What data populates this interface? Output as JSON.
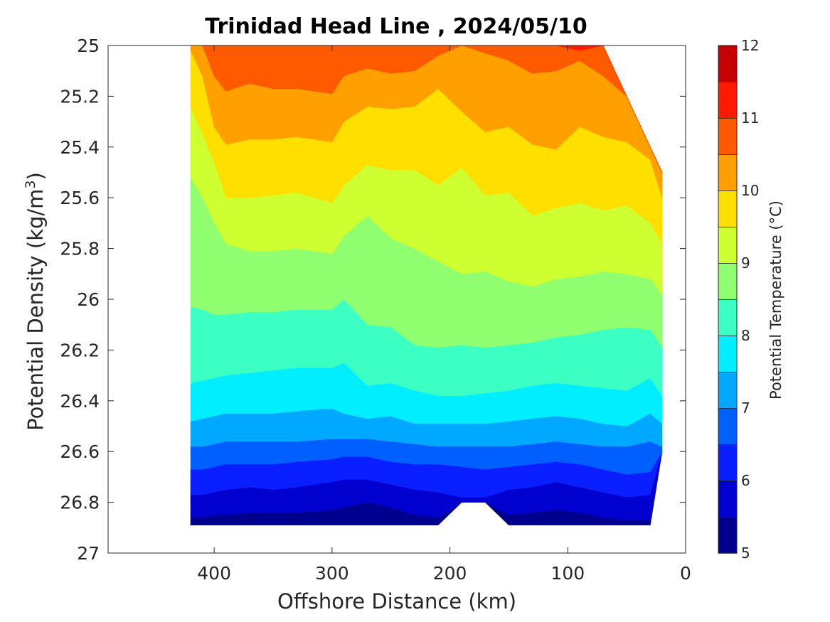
{
  "chart_data": {
    "type": "contour",
    "title": "Trinidad Head Line , 2024/05/10",
    "xlabel": "Offshore Distance (km)",
    "ylabel_main": "Potential Density (kg/m",
    "ylabel_sup": "3",
    "ylabel_close": ")",
    "xlim": [
      490,
      0
    ],
    "ylim": [
      25,
      27
    ],
    "x_reversed": true,
    "y_reversed": true,
    "xticks": [
      400,
      300,
      200,
      100,
      0
    ],
    "yticks": [
      25,
      25.2,
      25.4,
      25.6,
      25.8,
      26,
      26.2,
      26.4,
      26.6,
      26.8,
      27
    ],
    "ytick_labels": [
      "25",
      "25.2",
      "25.4",
      "25.6",
      "25.8",
      "26",
      "26.2",
      "26.4",
      "26.6",
      "26.8",
      "27"
    ],
    "colorbar": {
      "label": "Potential Temperature (°C)",
      "range": [
        5,
        12
      ],
      "ticks": [
        5,
        6,
        7,
        8,
        9,
        10,
        11,
        12
      ],
      "levels": [
        5,
        5.5,
        6,
        6.5,
        7,
        7.5,
        8,
        8.5,
        9,
        9.5,
        10,
        10.5,
        11,
        11.5,
        12
      ],
      "colors": [
        "#00008f",
        "#0000cf",
        "#0a1fff",
        "#0060ff",
        "#00a8ff",
        "#00eeff",
        "#3cffc3",
        "#8fff70",
        "#cdff31",
        "#ffdf00",
        "#ff9f00",
        "#ff5a00",
        "#ff1a00",
        "#c40000"
      ]
    },
    "x": [
      420,
      410,
      400,
      390,
      370,
      350,
      330,
      300,
      290,
      270,
      250,
      230,
      210,
      190,
      170,
      150,
      130,
      110,
      90,
      70,
      50,
      30,
      20
    ],
    "bottom_density": [
      26.89,
      26.89,
      26.89,
      26.89,
      26.89,
      26.89,
      26.89,
      26.89,
      26.89,
      26.89,
      26.89,
      26.89,
      26.89,
      26.8,
      26.8,
      26.89,
      26.89,
      26.89,
      26.89,
      26.89,
      26.89,
      26.89,
      26.6
    ],
    "top_density": [
      25,
      25,
      25,
      25,
      25,
      25,
      25,
      25,
      25,
      25,
      25,
      25,
      25,
      25,
      25,
      25,
      25,
      25,
      25,
      25,
      25.2,
      25.4,
      25.5
    ],
    "isolines": [
      {
        "level": 5.5,
        "density": [
          26.86,
          26.86,
          26.85,
          26.85,
          26.84,
          26.84,
          26.84,
          26.83,
          26.82,
          26.8,
          26.82,
          26.85,
          26.86,
          26.8,
          26.8,
          26.85,
          26.84,
          26.83,
          26.84,
          26.86,
          26.87,
          26.87,
          26.6
        ]
      },
      {
        "level": 6.0,
        "density": [
          26.77,
          26.77,
          26.76,
          26.75,
          26.74,
          26.75,
          26.74,
          26.72,
          26.71,
          26.71,
          26.73,
          26.75,
          26.76,
          26.78,
          26.78,
          26.75,
          26.74,
          26.72,
          26.74,
          26.76,
          26.78,
          26.77,
          26.6
        ]
      },
      {
        "level": 6.5,
        "density": [
          26.67,
          26.67,
          26.66,
          26.65,
          26.65,
          26.65,
          26.64,
          26.63,
          26.62,
          26.62,
          26.64,
          26.65,
          26.65,
          26.66,
          26.67,
          26.66,
          26.65,
          26.64,
          26.65,
          26.67,
          26.69,
          26.68,
          26.6
        ]
      },
      {
        "level": 7.0,
        "density": [
          26.58,
          26.58,
          26.57,
          26.56,
          26.56,
          26.56,
          26.56,
          26.55,
          26.55,
          26.55,
          26.56,
          26.57,
          26.58,
          26.58,
          26.58,
          26.58,
          26.57,
          26.56,
          26.57,
          26.58,
          26.58,
          26.56,
          26.58
        ]
      },
      {
        "level": 7.5,
        "density": [
          26.48,
          26.47,
          26.46,
          26.45,
          26.45,
          26.45,
          26.44,
          26.43,
          26.45,
          26.47,
          26.46,
          26.49,
          26.49,
          26.49,
          26.49,
          26.48,
          26.47,
          26.46,
          26.47,
          26.49,
          26.5,
          26.45,
          26.49
        ]
      },
      {
        "level": 8.0,
        "density": [
          26.33,
          26.32,
          26.31,
          26.3,
          26.29,
          26.28,
          26.27,
          26.27,
          26.25,
          26.34,
          26.33,
          26.36,
          26.38,
          26.38,
          26.37,
          26.36,
          26.34,
          26.33,
          26.34,
          26.35,
          26.36,
          26.31,
          26.38
        ]
      },
      {
        "level": 8.5,
        "density": [
          26.03,
          26.04,
          26.06,
          26.06,
          26.05,
          26.05,
          26.04,
          26.04,
          26.0,
          26.1,
          26.11,
          26.18,
          26.19,
          26.18,
          26.19,
          26.18,
          26.17,
          26.15,
          26.14,
          26.12,
          26.11,
          26.12,
          26.19
        ]
      },
      {
        "level": 9.0,
        "density": [
          25.52,
          25.6,
          25.7,
          25.78,
          25.81,
          25.81,
          25.8,
          25.82,
          25.75,
          25.67,
          25.76,
          25.8,
          25.85,
          25.9,
          25.89,
          25.93,
          25.95,
          25.92,
          25.91,
          25.89,
          25.9,
          25.92,
          25.98
        ]
      },
      {
        "level": 9.5,
        "density": [
          25.24,
          25.35,
          25.46,
          25.6,
          25.6,
          25.59,
          25.58,
          25.62,
          25.55,
          25.47,
          25.49,
          25.49,
          25.55,
          25.48,
          25.59,
          25.58,
          25.67,
          25.64,
          25.62,
          25.65,
          25.63,
          25.7,
          25.78
        ]
      },
      {
        "level": 10.0,
        "density": [
          25.02,
          25.12,
          25.32,
          25.39,
          25.37,
          25.37,
          25.36,
          25.38,
          25.3,
          25.24,
          25.25,
          25.24,
          25.17,
          25.26,
          25.34,
          25.32,
          25.39,
          25.41,
          25.32,
          25.36,
          25.38,
          25.45,
          25.6
        ]
      },
      {
        "level": 10.5,
        "density": [
          25.0,
          25.0,
          25.12,
          25.18,
          25.15,
          25.17,
          25.17,
          25.19,
          25.12,
          25.09,
          25.11,
          25.1,
          25.04,
          25.0,
          25.03,
          25.06,
          25.11,
          25.1,
          25.06,
          25.12,
          25.2,
          25.35,
          25.5
        ]
      },
      {
        "level": 11.0,
        "density": [
          25.0,
          25.0,
          25.0,
          25.0,
          25.0,
          25.0,
          25.0,
          25.0,
          25.0,
          25.0,
          25.0,
          25.0,
          25.0,
          25.0,
          25.0,
          25.0,
          25.0,
          25.0,
          25.02,
          25.0,
          25.18,
          25.36,
          25.5
        ]
      }
    ]
  }
}
